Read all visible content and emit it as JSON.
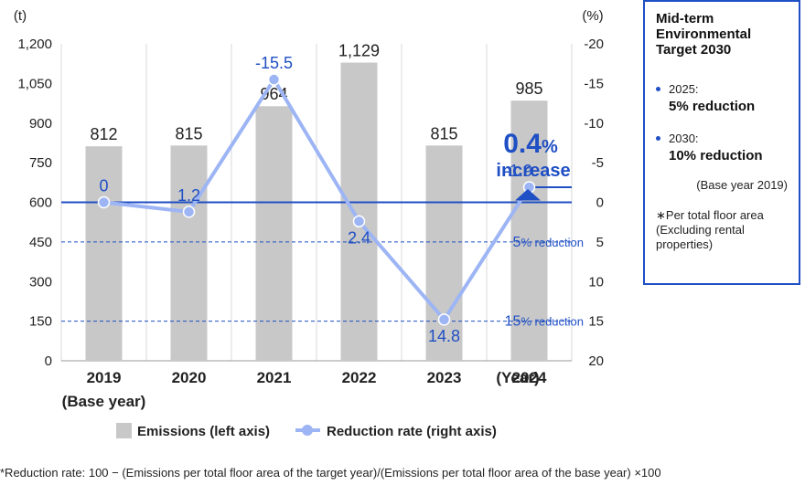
{
  "chart_data": {
    "type": "bar+line",
    "categories": [
      "2019",
      "2020",
      "2021",
      "2022",
      "2023",
      "2024"
    ],
    "category_sublabels": [
      "(Base year)",
      "",
      "",
      "",
      "",
      ""
    ],
    "x_axis_suffix": "(Year)",
    "series": [
      {
        "name": "Emissions (left axis)",
        "type": "bar",
        "axis": "left",
        "values": [
          812,
          815,
          964,
          1129,
          815,
          985
        ],
        "labels": [
          "812",
          "815",
          "964",
          "1,129",
          "815",
          "985"
        ],
        "color": "#c8c8c8"
      },
      {
        "name": "Reduction rate (right axis)",
        "type": "line",
        "axis": "right",
        "values": [
          0,
          1.2,
          -15.5,
          2.4,
          14.8,
          -1.9
        ],
        "labels": [
          "0",
          "1.2",
          "-15.5",
          "2.4",
          "14.8",
          "-1.9"
        ],
        "color": "#9db5f5"
      }
    ],
    "left_axis": {
      "unit": "(t)",
      "min": 0,
      "max": 1200,
      "ticks": [
        "0",
        "150",
        "300",
        "450",
        "600",
        "750",
        "900",
        "1,050",
        "1,200"
      ]
    },
    "right_axis": {
      "unit": "(%)",
      "inverted": true,
      "min": -20,
      "max": 20,
      "ticks": [
        "-20",
        "-15",
        "-10",
        "-5",
        "0",
        "5",
        "10",
        "15",
        "20"
      ]
    },
    "reference_lines": [
      {
        "value": 0,
        "style": "solid",
        "color": "#1f4fc4"
      },
      {
        "value": 5,
        "style": "dashed",
        "num": "5",
        "text": "% reduction",
        "color": "#1f4fc4"
      },
      {
        "value": 15,
        "style": "dashed",
        "num": "15",
        "text": "% reduction",
        "color": "#1f4fc4"
      }
    ],
    "callout": {
      "value": "0.4",
      "unit": "%",
      "word": "increase"
    },
    "grid": "vertical"
  },
  "legend": {
    "bar_label": "Emissions (left axis)",
    "line_label": "Reduction rate (right axis)"
  },
  "target_box": {
    "title": "Mid-term Environmental Target 2030",
    "items": [
      {
        "year": "2025:",
        "value": "5% reduction"
      },
      {
        "year": "2030:",
        "value": "10% reduction"
      }
    ],
    "base_year": "(Base year 2019)",
    "note": "∗Per total floor area (Excluding rental properties)"
  },
  "footnote": "*Reduction rate: 100 − (Emissions per total floor area of the target year)/(Emissions per total floor area of the base year) ×100",
  "colors": {
    "accent": "#1f4fc4",
    "bar": "#c8c8c8",
    "line": "#9db5f5"
  }
}
